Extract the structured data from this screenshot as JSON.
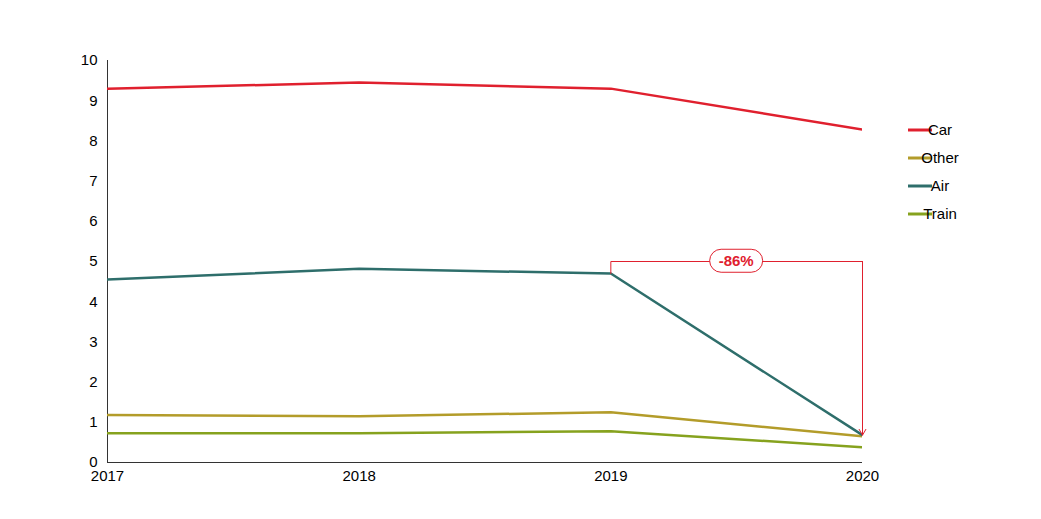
{
  "chart_data": {
    "type": "line",
    "x": [
      2017,
      2018,
      2019,
      2020
    ],
    "xlim": [
      2017,
      2020
    ],
    "xticks": [
      2017,
      2018,
      2019,
      2020
    ],
    "ylim": [
      0,
      10
    ],
    "yticks": [
      0,
      1,
      2,
      3,
      4,
      5,
      6,
      7,
      8,
      9,
      10
    ],
    "grid": false,
    "legend": "right",
    "series": [
      {
        "name": "Car",
        "color": "#e0202e",
        "values": [
          9.3,
          9.45,
          9.3,
          8.28
        ]
      },
      {
        "name": "Other",
        "color": "#b39c2a",
        "values": [
          1.18,
          1.15,
          1.25,
          0.65
        ]
      },
      {
        "name": "Air",
        "color": "#2e6e6b",
        "values": [
          4.55,
          4.82,
          4.7,
          0.68
        ]
      },
      {
        "name": "Train",
        "color": "#86a21e",
        "values": [
          0.73,
          0.73,
          0.78,
          0.38
        ]
      }
    ],
    "annotations": [
      {
        "text": "-86%",
        "series": "Air",
        "from": 2019,
        "to": 2020,
        "color": "#e0202e"
      }
    ]
  }
}
